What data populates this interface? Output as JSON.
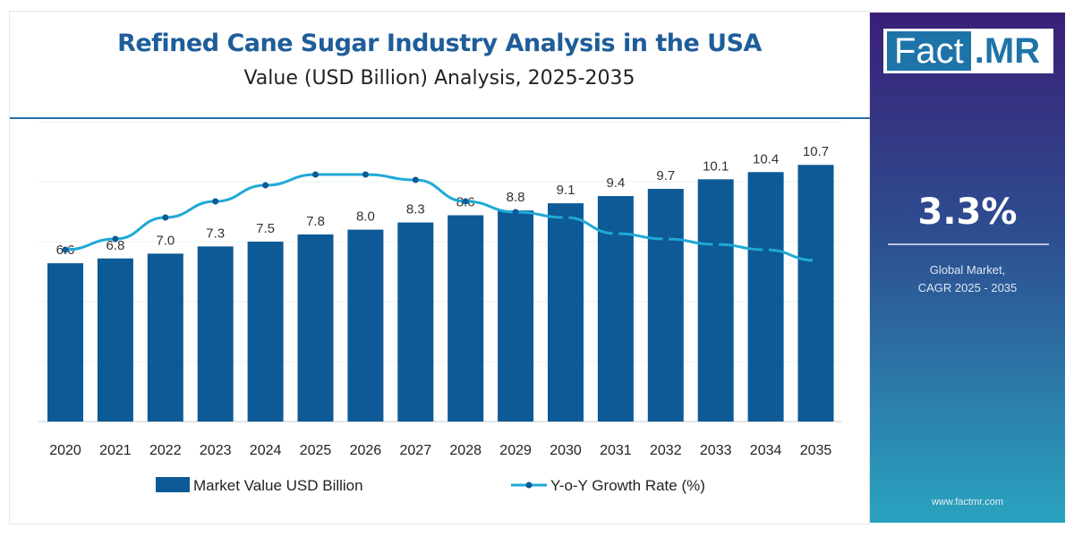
{
  "header": {
    "title": "Refined Cane Sugar Industry Analysis in the USA",
    "subtitle": "Value (USD Billion) Analysis, 2025-2035"
  },
  "sidebar": {
    "logo_left": "Fact",
    "logo_right": ".MR",
    "cagr": "3.3%",
    "cagr_label_1": "Global Market,",
    "cagr_label_2": "CAGR 2025 - 2035",
    "url": "www.factmr.com"
  },
  "chart_data": {
    "type": "bar+line",
    "categories": [
      "2020",
      "2021",
      "2022",
      "2023",
      "2024",
      "2025",
      "2026",
      "2027",
      "2028",
      "2029",
      "2030",
      "2031",
      "2032",
      "2033",
      "2034",
      "2035"
    ],
    "series": [
      {
        "name": "Market Value USD Billion",
        "type": "bar",
        "color": "#0d5a96",
        "values": [
          6.6,
          6.8,
          7.0,
          7.3,
          7.5,
          7.8,
          8.0,
          8.3,
          8.6,
          8.8,
          9.1,
          9.4,
          9.7,
          10.1,
          10.4,
          10.7
        ],
        "labels": [
          "6.6",
          "6.8",
          "7.0",
          "7.3",
          "7.5",
          "7.8",
          "8.0",
          "8.3",
          "8.6",
          "8.8",
          "9.1",
          "9.4",
          "9.7",
          "10.1",
          "10.4",
          "10.7"
        ]
      },
      {
        "name": "Y-o-Y Growth Rate (%)",
        "type": "line",
        "color": "#1fa9d6",
        "values": [
          3.2,
          3.4,
          3.8,
          4.1,
          4.4,
          4.6,
          4.6,
          4.5,
          4.1,
          3.9,
          3.8,
          3.5,
          3.4,
          3.3,
          3.2,
          3.0
        ]
      }
    ],
    "ylim": [
      0,
      12
    ],
    "grid": true,
    "legend": "bottom"
  }
}
